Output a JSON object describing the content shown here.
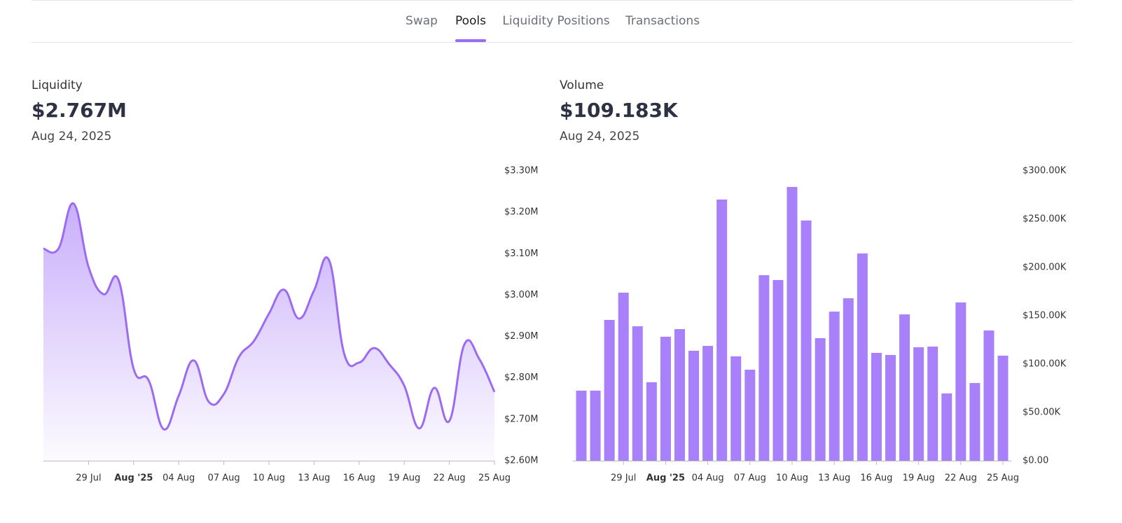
{
  "nav": {
    "tabs": [
      "Swap",
      "Pools",
      "Liquidity Positions",
      "Transactions"
    ],
    "active_tab": 1
  },
  "chart_data": [
    {
      "type": "area",
      "title": "Liquidity",
      "headline": "$2.767M",
      "date": "Aug 24, 2025",
      "color": "#9b6cf2",
      "categories": [
        null,
        null,
        null,
        "29 Jul",
        null,
        null,
        "Aug '25",
        null,
        null,
        "04 Aug",
        null,
        null,
        "07 Aug",
        null,
        null,
        "10 Aug",
        null,
        null,
        "13 Aug",
        null,
        null,
        "16 Aug",
        null,
        null,
        "19 Aug",
        null,
        null,
        "22 Aug",
        null,
        null,
        "25 Aug"
      ],
      "bold_ticks": [
        6
      ],
      "values": [
        3112000,
        3112000,
        3221000,
        3068000,
        3002000,
        3036000,
        2822000,
        2794000,
        2676000,
        2757000,
        2842000,
        2742000,
        2761000,
        2850000,
        2889000,
        2955000,
        3013000,
        2943000,
        3011000,
        3084000,
        2859000,
        2837000,
        2872000,
        2833000,
        2781000,
        2678000,
        2776000,
        2696000,
        2881000,
        2845000,
        2766000
      ],
      "ylim": [
        2600000,
        3300000
      ],
      "yticks": [
        {
          "value": 2600000,
          "label": "$2.60M"
        },
        {
          "value": 2700000,
          "label": "$2.70M"
        },
        {
          "value": 2800000,
          "label": "$2.80M"
        },
        {
          "value": 2900000,
          "label": "$2.90M"
        },
        {
          "value": 3000000,
          "label": "$3.00M"
        },
        {
          "value": 3100000,
          "label": "$3.10M"
        },
        {
          "value": 3200000,
          "label": "$3.20M"
        },
        {
          "value": 3300000,
          "label": "$3.30M"
        }
      ]
    },
    {
      "type": "bar",
      "title": "Volume",
      "headline": "$109.183K",
      "date": "Aug 24, 2025",
      "color": "#a880fa",
      "categories": [
        null,
        null,
        null,
        "29 Jul",
        null,
        null,
        "Aug '25",
        null,
        null,
        "04 Aug",
        null,
        null,
        "07 Aug",
        null,
        null,
        "10 Aug",
        null,
        null,
        "13 Aug",
        null,
        null,
        "16 Aug",
        null,
        null,
        "19 Aug",
        null,
        null,
        "22 Aug",
        null,
        null,
        "25 Aug"
      ],
      "bold_ticks": [
        6
      ],
      "values": [
        72500,
        72500,
        145700,
        173900,
        139100,
        81200,
        128300,
        136200,
        113800,
        118800,
        270300,
        108000,
        94200,
        192000,
        187000,
        283300,
        248600,
        126800,
        154300,
        168100,
        214500,
        111600,
        109400,
        151400,
        117400,
        118100,
        69600,
        163800,
        80400,
        134800,
        108700
      ],
      "ylim": [
        0,
        300000
      ],
      "yticks": [
        {
          "value": 0,
          "label": "$0.00"
        },
        {
          "value": 50000,
          "label": "$50.00K"
        },
        {
          "value": 100000,
          "label": "$100.00K"
        },
        {
          "value": 150000,
          "label": "$150.00K"
        },
        {
          "value": 200000,
          "label": "$200.00K"
        },
        {
          "value": 250000,
          "label": "$250.00K"
        },
        {
          "value": 300000,
          "label": "$300.00K"
        }
      ]
    }
  ]
}
